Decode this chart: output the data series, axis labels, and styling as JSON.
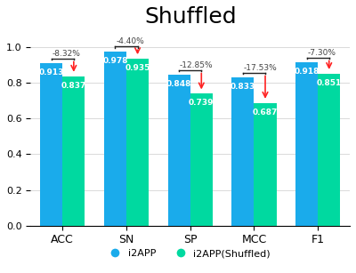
{
  "title": "Shuffled",
  "categories": [
    "ACC",
    "SN",
    "SP",
    "MCC",
    "F1"
  ],
  "i2app_values": [
    0.913,
    0.978,
    0.848,
    0.833,
    0.918
  ],
  "shuffled_values": [
    0.837,
    0.935,
    0.739,
    0.687,
    0.851
  ],
  "pct_changes": [
    "-8.32%",
    "-4.40%",
    "-12.85%",
    "-17.53%",
    "-7.30%"
  ],
  "bar_color_blue": "#1AABEB",
  "bar_color_green": "#00D9A0",
  "arrow_color": "#FF2222",
  "bracket_color": "#222222",
  "bg_color": "#FFFFFF",
  "ylim": [
    0,
    1.08
  ],
  "yticks": [
    0,
    0.2,
    0.4,
    0.6,
    0.8,
    1
  ],
  "legend_labels": [
    "i2APP",
    "i2APP(Shuffled)"
  ],
  "bar_width": 0.35,
  "title_fontsize": 18
}
